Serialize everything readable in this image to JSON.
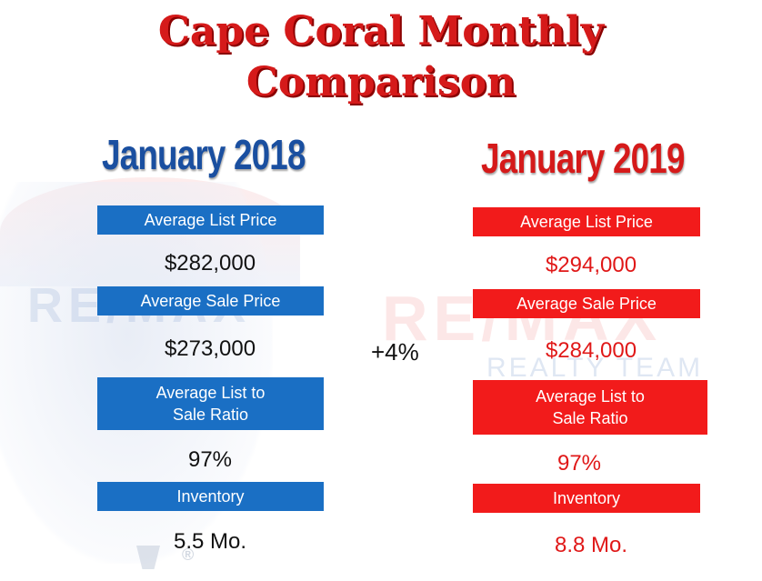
{
  "title": {
    "line1": "Cape Coral Monthly",
    "line2": "Comparison"
  },
  "left": {
    "heading": "January 2018",
    "items": [
      {
        "label": "Average List Price",
        "value": "$282,000"
      },
      {
        "label": "Average Sale Price",
        "value": "$273,000"
      },
      {
        "label": "Average List to\nSale Ratio",
        "value": "97%"
      },
      {
        "label": "Inventory",
        "value": "5.5 Mo."
      }
    ]
  },
  "right": {
    "heading": "January 2019",
    "items": [
      {
        "label": "Average List Price",
        "value": "$294,000"
      },
      {
        "label": "Average Sale Price",
        "value": "$284,000"
      },
      {
        "label": "Average List to\nSale Ratio",
        "value": "97%"
      },
      {
        "label": "Inventory",
        "value": "8.8 Mo."
      }
    ]
  },
  "sale_price_change": "+4%",
  "watermark": {
    "brand": "RE/MAX",
    "sub": "REALTY TEAM",
    "reg": "®"
  },
  "colors": {
    "blue": "#1a6fc4",
    "red": "#f21b1b",
    "title_red": "#d51a1a"
  }
}
